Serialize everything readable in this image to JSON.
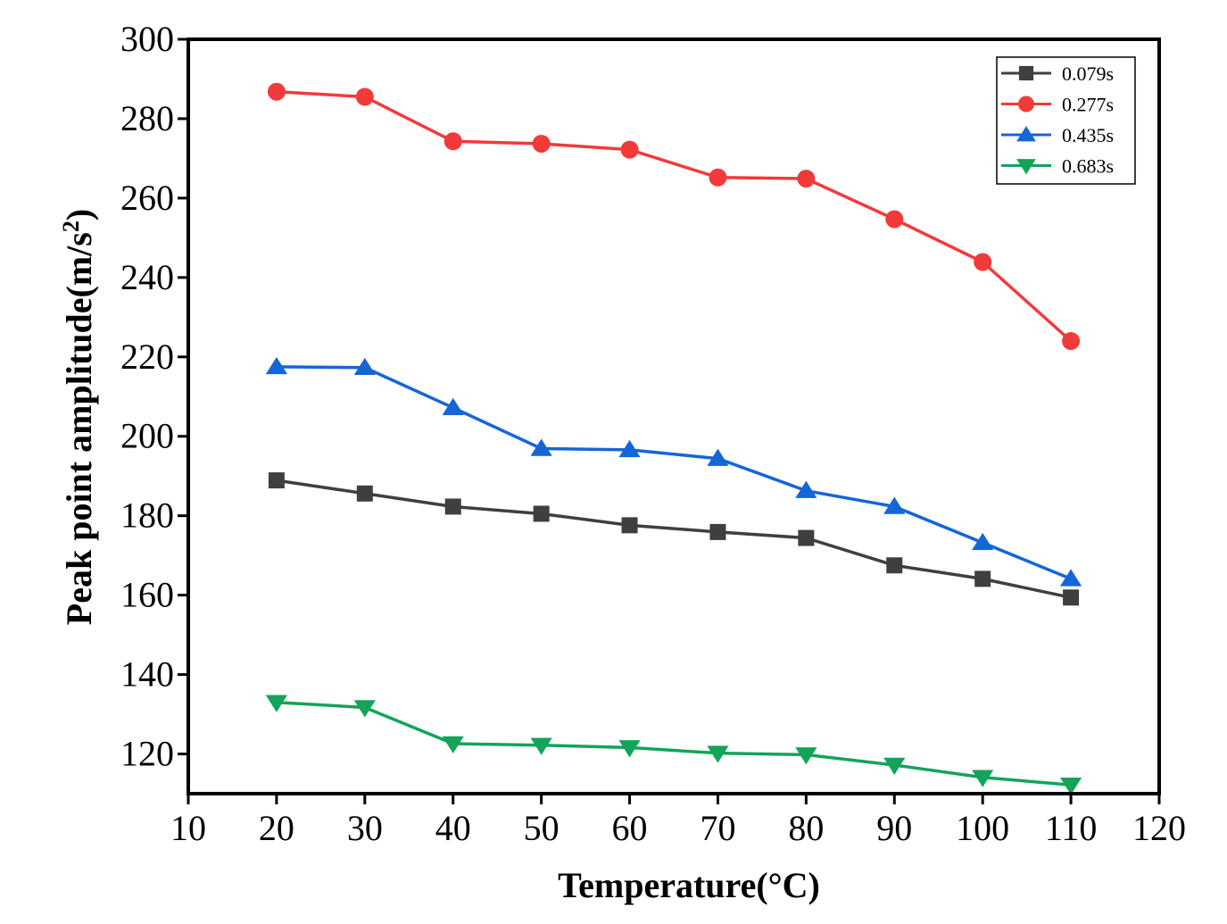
{
  "chart_data": {
    "type": "line",
    "xlabel": "Temperature(°C)",
    "ylabel": "Peak point amplitude(m/s",
    "ylabel_superscript": "2",
    "ylabel_suffix": ")",
    "xlim": [
      10,
      120
    ],
    "ylim": [
      110,
      300
    ],
    "xticks": [
      10,
      20,
      30,
      40,
      50,
      60,
      70,
      80,
      90,
      100,
      110,
      120
    ],
    "yticks": [
      120,
      140,
      160,
      180,
      200,
      220,
      240,
      260,
      280,
      300
    ],
    "grid": false,
    "legend_position": "top-right",
    "x": [
      20,
      30,
      40,
      50,
      60,
      70,
      80,
      90,
      100,
      110
    ],
    "series": [
      {
        "name": "0.079s",
        "marker": "square",
        "color": "#3f3f3f",
        "values": [
          188.9,
          185.6,
          182.3,
          180.5,
          177.6,
          175.9,
          174.4,
          167.5,
          164.1,
          159.4
        ]
      },
      {
        "name": "0.277s",
        "marker": "circle",
        "color": "#f23a3a",
        "values": [
          286.8,
          285.5,
          274.3,
          273.7,
          272.2,
          265.2,
          264.9,
          254.7,
          243.9,
          224.0
        ]
      },
      {
        "name": "0.435s",
        "marker": "triangle-up",
        "color": "#1466d6",
        "values": [
          217.5,
          217.3,
          207.2,
          196.9,
          196.6,
          194.4,
          186.3,
          182.3,
          173.2,
          164.1
        ]
      },
      {
        "name": "0.683s",
        "marker": "triangle-down",
        "color": "#13a45a",
        "values": [
          133.0,
          131.7,
          122.6,
          122.2,
          121.6,
          120.2,
          119.8,
          117.2,
          114.1,
          112.2
        ]
      }
    ]
  }
}
